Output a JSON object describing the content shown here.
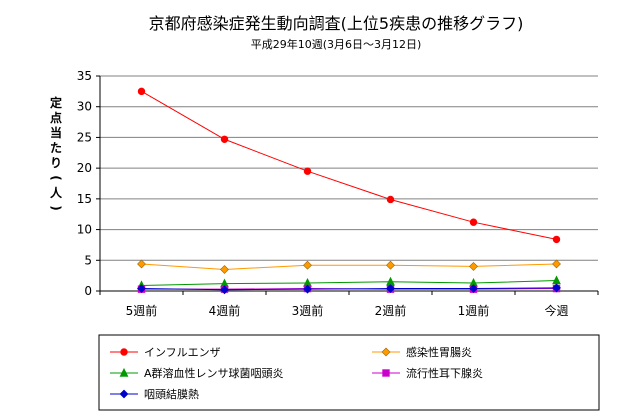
{
  "chart_data": {
    "type": "line",
    "title": "京都府感染症発生動向調査(上位5疾患の推移グラフ)",
    "subtitle": "平成29年10週(3月6日～3月12日)",
    "ylabel": "定点当たり(人)",
    "xlabel": "",
    "categories": [
      "5週前",
      "4週前",
      "3週前",
      "2週前",
      "1週前",
      "今週"
    ],
    "ylim": [
      0,
      35
    ],
    "yticks": [
      0,
      5,
      10,
      15,
      20,
      25,
      30,
      35
    ],
    "grid": "horizontal",
    "legend_position": "bottom",
    "series": [
      {
        "name": "インフルエンザ",
        "values": [
          32.5,
          24.7,
          19.5,
          14.9,
          11.2,
          8.4
        ],
        "color": "#ff0000",
        "marker": "circle"
      },
      {
        "name": "感染性胃腸炎",
        "values": [
          4.4,
          3.5,
          4.2,
          4.2,
          4.0,
          4.4
        ],
        "color": "#ff9900",
        "marker": "diamond"
      },
      {
        "name": "A群溶血性レンサ球菌咽頭炎",
        "values": [
          0.9,
          1.2,
          1.3,
          1.5,
          1.3,
          1.7
        ],
        "color": "#009900",
        "marker": "triangle"
      },
      {
        "name": "流行性耳下腺炎",
        "values": [
          0.3,
          0.3,
          0.4,
          0.3,
          0.3,
          0.4
        ],
        "color": "#cc00cc",
        "marker": "square"
      },
      {
        "name": "咽頭結膜熱",
        "values": [
          0.4,
          0.2,
          0.3,
          0.4,
          0.4,
          0.5
        ],
        "color": "#0000cc",
        "marker": "diamond"
      }
    ]
  }
}
